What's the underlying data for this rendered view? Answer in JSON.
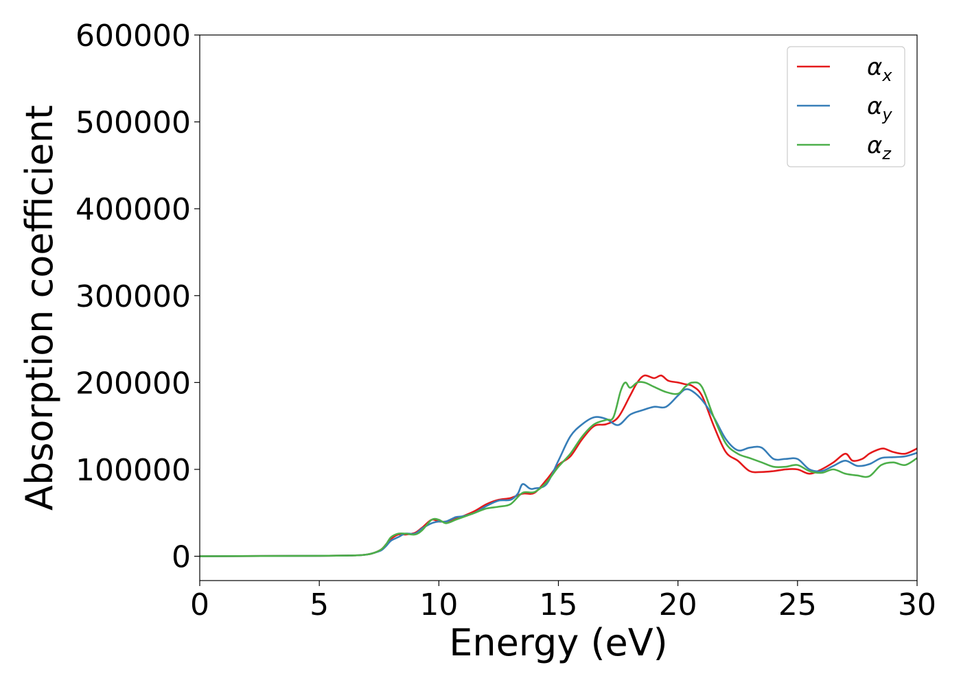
{
  "chart_data": {
    "type": "line",
    "title": "",
    "xlabel": "Energy (eV)",
    "ylabel": "Absorption coefficient",
    "xlim": [
      0,
      30
    ],
    "ylim": [
      -28000,
      600000
    ],
    "xticks": [
      0,
      5,
      10,
      15,
      20,
      25,
      30
    ],
    "yticks": [
      0,
      100000,
      200000,
      300000,
      400000,
      500000,
      600000
    ],
    "grid": false,
    "legend_position": "top-right",
    "series": [
      {
        "name_base": "α",
        "name_sub": "x",
        "color": "#e41a1c",
        "x": [
          0,
          5,
          6.5,
          7,
          7.3,
          7.6,
          7.8,
          8,
          8.3,
          8.6,
          9,
          9.3,
          9.7,
          10,
          10.3,
          10.7,
          11,
          11.5,
          12,
          12.5,
          13,
          13.5,
          14,
          14.5,
          15,
          15.5,
          16,
          16.5,
          17,
          17.5,
          18,
          18.3,
          18.6,
          19,
          19.3,
          19.6,
          20,
          20.3,
          20.6,
          21,
          21.5,
          22,
          22.5,
          23,
          23.5,
          24,
          24.5,
          25,
          25.5,
          26,
          26.5,
          27,
          27.3,
          27.7,
          28,
          28.3,
          28.6,
          29,
          29.5,
          30
        ],
        "y": [
          0,
          500,
          1000,
          2000,
          4000,
          8000,
          14000,
          20000,
          25000,
          25000,
          27000,
          33000,
          42000,
          40000,
          40000,
          43000,
          46000,
          52000,
          60000,
          65000,
          67000,
          72000,
          73000,
          88000,
          105000,
          115000,
          135000,
          150000,
          152000,
          160000,
          185000,
          200000,
          208000,
          205000,
          208000,
          202000,
          200000,
          198000,
          196000,
          185000,
          150000,
          120000,
          110000,
          98000,
          97000,
          98000,
          100000,
          100000,
          95000,
          100000,
          108000,
          118000,
          110000,
          112000,
          118000,
          122000,
          124000,
          120000,
          118000,
          124000
        ]
      },
      {
        "name_base": "α",
        "name_sub": "y",
        "color": "#377eb8",
        "x": [
          0,
          5,
          6.5,
          7,
          7.3,
          7.6,
          7.8,
          8,
          8.3,
          8.6,
          9,
          9.3,
          9.7,
          10,
          10.3,
          10.7,
          11,
          11.5,
          12,
          12.5,
          13,
          13.3,
          13.5,
          13.8,
          14,
          14.5,
          15,
          15.5,
          16,
          16.5,
          17,
          17.5,
          18,
          18.5,
          19,
          19.5,
          20,
          20.3,
          20.6,
          21,
          21.5,
          22,
          22.5,
          23,
          23.5,
          24,
          24.5,
          25,
          25.5,
          26,
          26.5,
          27,
          27.5,
          28,
          28.5,
          29,
          29.5,
          30
        ],
        "y": [
          0,
          500,
          1000,
          2000,
          4000,
          7000,
          12000,
          18000,
          22000,
          26000,
          26000,
          32000,
          38000,
          40000,
          40000,
          45000,
          46000,
          50000,
          58000,
          64000,
          65000,
          72000,
          83000,
          78000,
          78000,
          83000,
          110000,
          138000,
          152000,
          160000,
          158000,
          151000,
          163000,
          168000,
          172000,
          172000,
          185000,
          192000,
          190000,
          180000,
          160000,
          135000,
          122000,
          125000,
          125000,
          112000,
          112000,
          112000,
          100000,
          98000,
          104000,
          110000,
          104000,
          106000,
          113000,
          114000,
          115000,
          119000
        ]
      },
      {
        "name_base": "α",
        "name_sub": "z",
        "color": "#4daf4a",
        "x": [
          0,
          5,
          6.5,
          7,
          7.3,
          7.6,
          7.8,
          8,
          8.3,
          8.6,
          9,
          9.3,
          9.7,
          10,
          10.3,
          10.7,
          11,
          11.5,
          12,
          12.5,
          13,
          13.5,
          14,
          14.5,
          15,
          15.5,
          16,
          16.5,
          17,
          17.3,
          17.6,
          17.8,
          18,
          18.3,
          18.6,
          19,
          19.5,
          20,
          20.3,
          20.6,
          21,
          21.5,
          22,
          22.5,
          23,
          23.5,
          24,
          24.5,
          25,
          25.5,
          26,
          26.5,
          27,
          27.5,
          28,
          28.5,
          29,
          29.5,
          30
        ],
        "y": [
          0,
          500,
          1000,
          2000,
          4000,
          8000,
          14000,
          22000,
          26000,
          26000,
          25000,
          30000,
          42000,
          42000,
          38000,
          42000,
          45000,
          50000,
          55000,
          57000,
          60000,
          73000,
          74000,
          85000,
          103000,
          118000,
          138000,
          152000,
          157000,
          160000,
          190000,
          200000,
          194000,
          200000,
          200000,
          195000,
          189000,
          187000,
          195000,
          200000,
          195000,
          160000,
          130000,
          118000,
          113000,
          108000,
          103000,
          103000,
          105000,
          98000,
          96000,
          100000,
          95000,
          93000,
          92000,
          105000,
          108000,
          105000,
          113000
        ]
      }
    ]
  }
}
